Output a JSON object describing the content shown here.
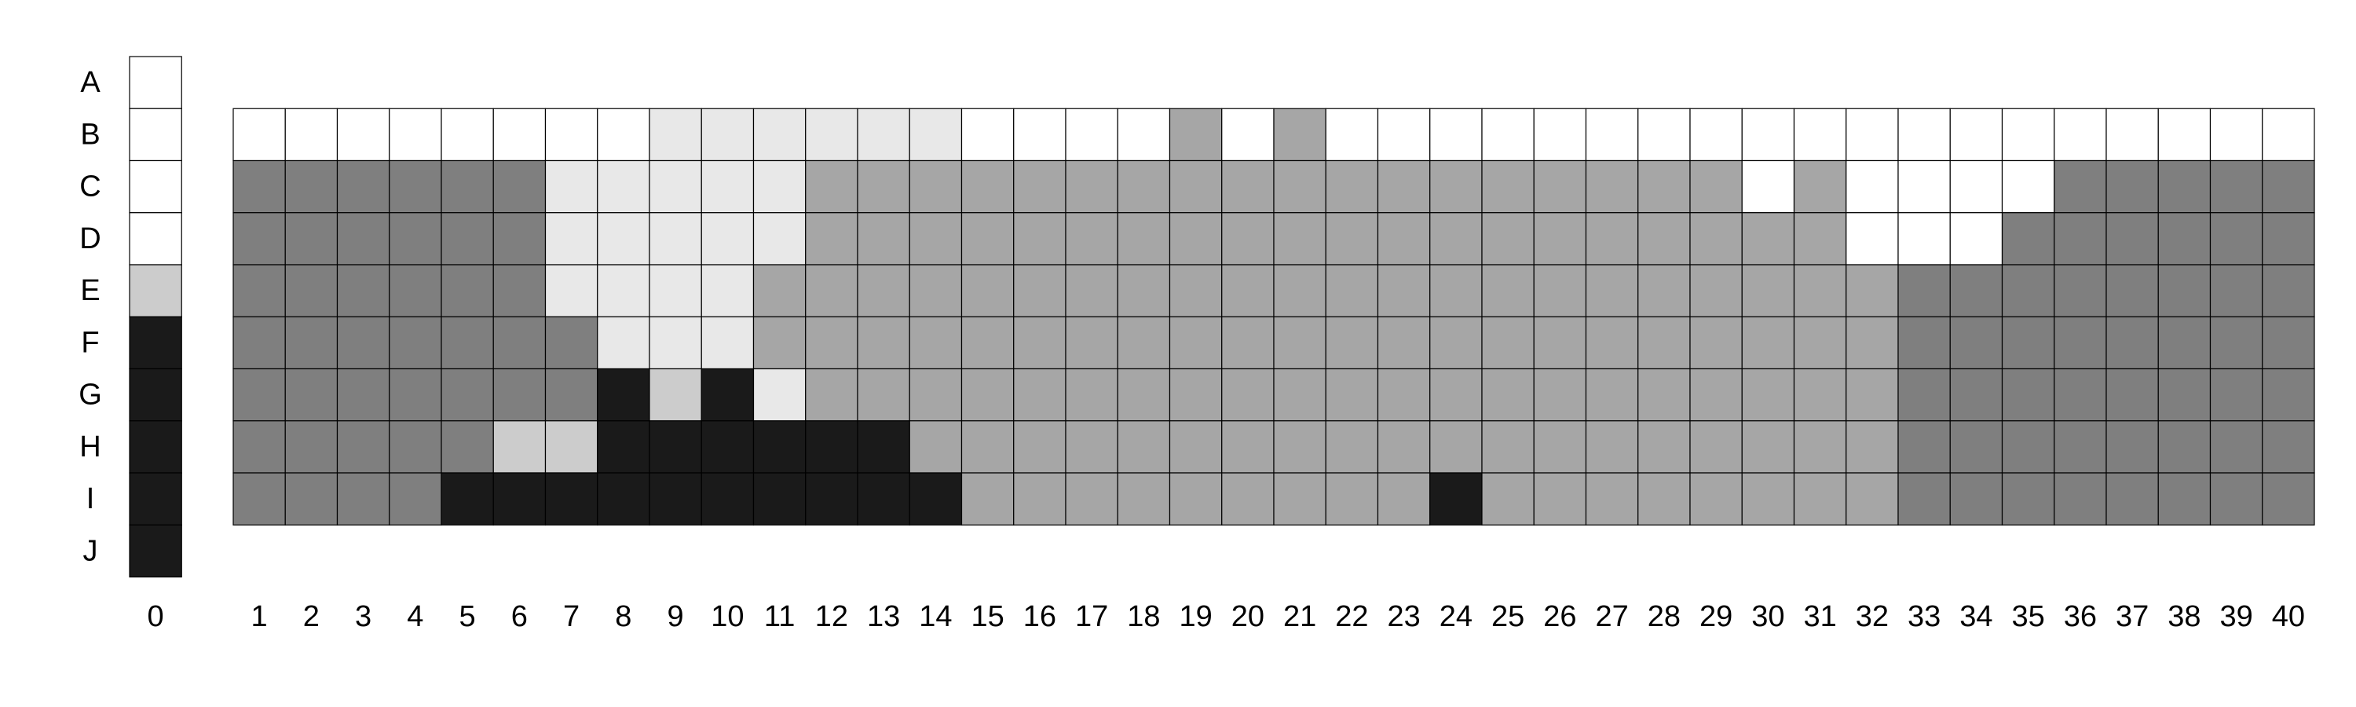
{
  "colors": {
    "w": "#ffffff",
    "l": "#e8e8e8",
    "s": "#cccccc",
    "m": "#a6a6a6",
    "d": "#7f7f7f",
    "k": "#1a1a1a",
    "grid": "#000000"
  },
  "chart_data": {
    "type": "heatmap",
    "row_labels": [
      "A",
      "B",
      "C",
      "D",
      "E",
      "F",
      "G",
      "H",
      "I",
      "J"
    ],
    "column_labels": [
      "0",
      "1",
      "2",
      "3",
      "4",
      "5",
      "6",
      "7",
      "8",
      "9",
      "10",
      "11",
      "12",
      "13",
      "14",
      "15",
      "16",
      "17",
      "18",
      "19",
      "20",
      "21",
      "22",
      "23",
      "24",
      "25",
      "26",
      "27",
      "28",
      "29",
      "30",
      "31",
      "32",
      "33",
      "34",
      "35",
      "36",
      "37",
      "38",
      "39",
      "40"
    ],
    "legend_column": {
      "label": "0",
      "values": [
        "w",
        "w",
        "w",
        "w",
        "s",
        "k",
        "k",
        "k",
        "k",
        "k"
      ]
    },
    "grid_rows": [
      "B",
      "C",
      "D",
      "E",
      "F",
      "G",
      "H",
      "I"
    ],
    "grid": [
      "wwwwwwwwllllllwwwwmwmwwwwwwwwwwwwwwwwwww",
      "ddddddlllllmmmmmmmmmmmmmmmmmmwmwwwwddddd",
      "ddddddlllllmmmmmmmmmmmmmmmmmmmmwwwdddddd",
      "ddddddllllmmmmmmmmmmmmmmmmmmmmmmdddddddd",
      "dddddddlllmmmmmmmmmmmmmmmmmmmmmmdddddddd",
      "dddddddksklmmmmmmmmmmmmmmmmmmmmmdddddddd",
      "dddddsskkkkkkmmmmmmmmmmmmmmmmmmmdddddddd",
      "ddddkkkkkkkkkkmmmmmmmmmkmmmmmmmmdddddddd"
    ]
  }
}
